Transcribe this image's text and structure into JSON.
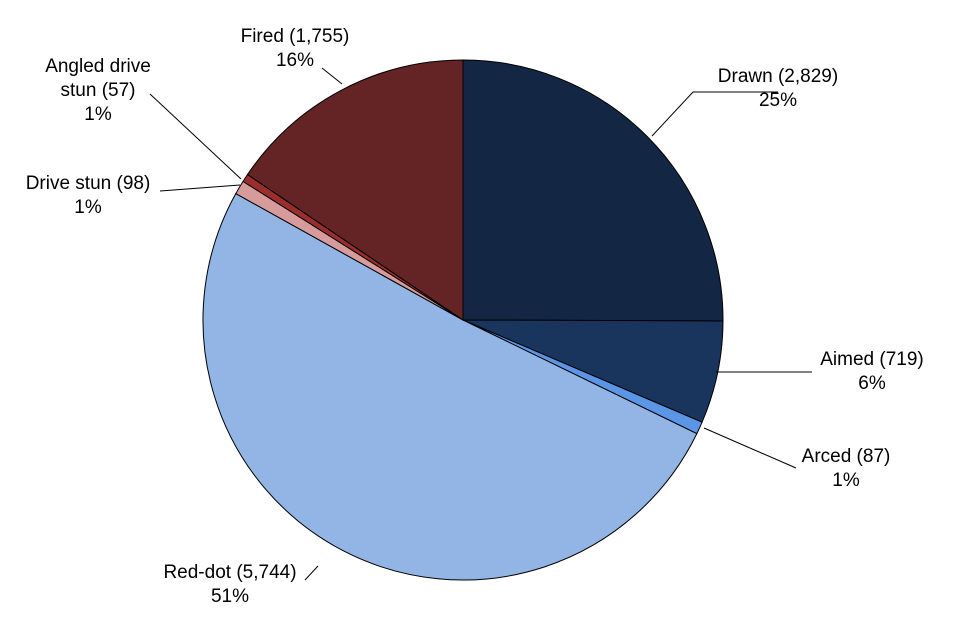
{
  "chart_data": {
    "type": "pie",
    "title": "",
    "legend": "none",
    "colors": {
      "Drawn": "#132744",
      "Aimed": "#19355e",
      "Arced": "#5b96e6",
      "Red-dot": "#92b5e5",
      "Drive stun": "#d89b9b",
      "Angled drive stun": "#9b2d2d",
      "Fired": "#642324"
    },
    "slices": [
      {
        "name": "Drawn",
        "value": 2829,
        "percent": "25%",
        "line1": "Drawn (2,829)",
        "line2": "25%"
      },
      {
        "name": "Aimed",
        "value": 719,
        "percent": "6%",
        "line1": "Aimed (719)",
        "line2": "6%"
      },
      {
        "name": "Arced",
        "value": 87,
        "percent": "1%",
        "line1": "Arced (87)",
        "line2": "1%"
      },
      {
        "name": "Red-dot",
        "value": 5744,
        "percent": "51%",
        "line1": "Red-dot (5,744)",
        "line2": "51%"
      },
      {
        "name": "Drive stun",
        "value": 98,
        "percent": "1%",
        "line1": "Drive stun (98)",
        "line2": "1%"
      },
      {
        "name": "Angled drive stun",
        "value": 57,
        "percent": "1%",
        "line1": "Angled drive",
        "line2": "stun (57)",
        "line3": "1%"
      },
      {
        "name": "Fired",
        "value": 1755,
        "percent": "16%",
        "line1": "Fired (1,755)",
        "line2": "16%"
      }
    ]
  }
}
